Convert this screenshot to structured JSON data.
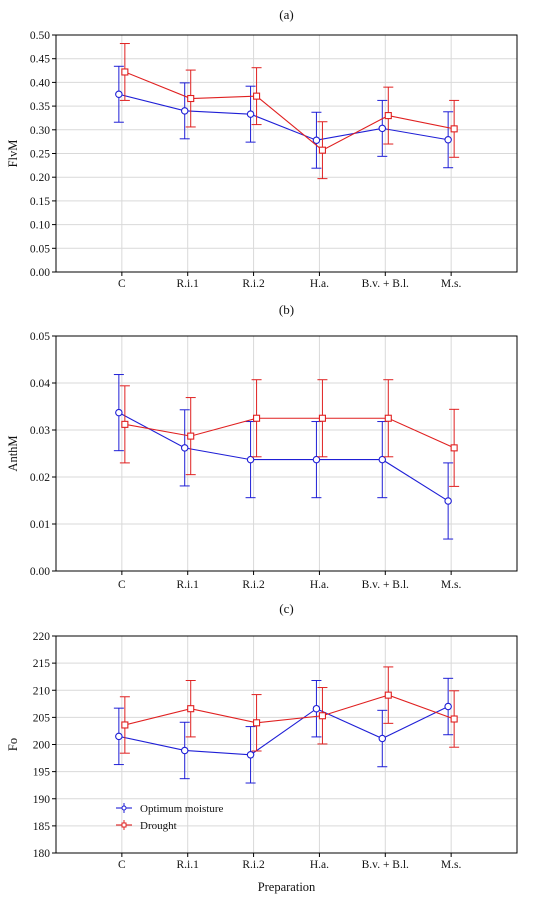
{
  "chart_data": [
    {
      "panel_label": "(a)",
      "type": "line",
      "ylabel": "FlvM",
      "xlabel": "",
      "ylim": [
        0,
        0.5
      ],
      "yticks": [
        0.0,
        0.05,
        0.1,
        0.15,
        0.2,
        0.25,
        0.3,
        0.35,
        0.4,
        0.45,
        0.5
      ],
      "ytick_decimals": 2,
      "categories": [
        "C",
        "R.i.1",
        "R.i.2",
        "H.a.",
        "B.v. + B.l.",
        "M.s."
      ],
      "grid": true,
      "series": [
        {
          "name": "Optimum moisture",
          "color": "#1f1fd6",
          "marker": "circle",
          "values": [
            0.375,
            0.34,
            0.333,
            0.278,
            0.303,
            0.279
          ],
          "error": [
            0.059,
            0.059,
            0.059,
            0.059,
            0.059,
            0.059
          ]
        },
        {
          "name": "Drought",
          "color": "#e02020",
          "marker": "square",
          "values": [
            0.422,
            0.366,
            0.371,
            0.257,
            0.33,
            0.302
          ],
          "error": [
            0.06,
            0.06,
            0.06,
            0.06,
            0.06,
            0.06
          ]
        }
      ]
    },
    {
      "panel_label": "(b)",
      "type": "line",
      "ylabel": "AnthM",
      "xlabel": "",
      "ylim": [
        0,
        0.05
      ],
      "yticks": [
        0.0,
        0.01,
        0.02,
        0.03,
        0.04,
        0.05
      ],
      "ytick_decimals": 2,
      "categories": [
        "C",
        "R.i.1",
        "R.i.2",
        "H.a.",
        "B.v. + B.l.",
        "M.s."
      ],
      "grid": true,
      "series": [
        {
          "name": "Optimum moisture",
          "color": "#1f1fd6",
          "marker": "circle",
          "values": [
            0.0337,
            0.0262,
            0.0237,
            0.0237,
            0.0237,
            0.0149
          ],
          "error": [
            0.0081,
            0.0081,
            0.0081,
            0.0081,
            0.0081,
            0.0081
          ]
        },
        {
          "name": "Drought",
          "color": "#e02020",
          "marker": "square",
          "values": [
            0.0312,
            0.0287,
            0.0325,
            0.0325,
            0.0325,
            0.0262
          ],
          "error": [
            0.0082,
            0.0082,
            0.0082,
            0.0082,
            0.0082,
            0.0082
          ]
        }
      ]
    },
    {
      "panel_label": "(c)",
      "type": "line",
      "ylabel": "Fo",
      "xlabel": "Preparation",
      "ylim": [
        180,
        220
      ],
      "yticks": [
        180,
        185,
        190,
        195,
        200,
        205,
        210,
        215,
        220
      ],
      "ytick_decimals": 0,
      "categories": [
        "C",
        "R.i.1",
        "R.i.2",
        "H.a.",
        "B.v. + B.l.",
        "M.s."
      ],
      "grid": true,
      "legend": {
        "placement": "bottom-left",
        "entries": [
          "Optimum moisture",
          "Drought"
        ]
      },
      "series": [
        {
          "name": "Optimum moisture",
          "color": "#1f1fd6",
          "marker": "circle",
          "values": [
            201.5,
            198.9,
            198.1,
            206.6,
            201.1,
            207.0
          ],
          "error": [
            5.2,
            5.2,
            5.2,
            5.2,
            5.2,
            5.2
          ]
        },
        {
          "name": "Drought",
          "color": "#e02020",
          "marker": "square",
          "values": [
            203.6,
            206.6,
            204.0,
            205.3,
            209.1,
            204.7
          ],
          "error": [
            5.2,
            5.2,
            5.2,
            5.2,
            5.2,
            5.2
          ]
        }
      ]
    }
  ]
}
